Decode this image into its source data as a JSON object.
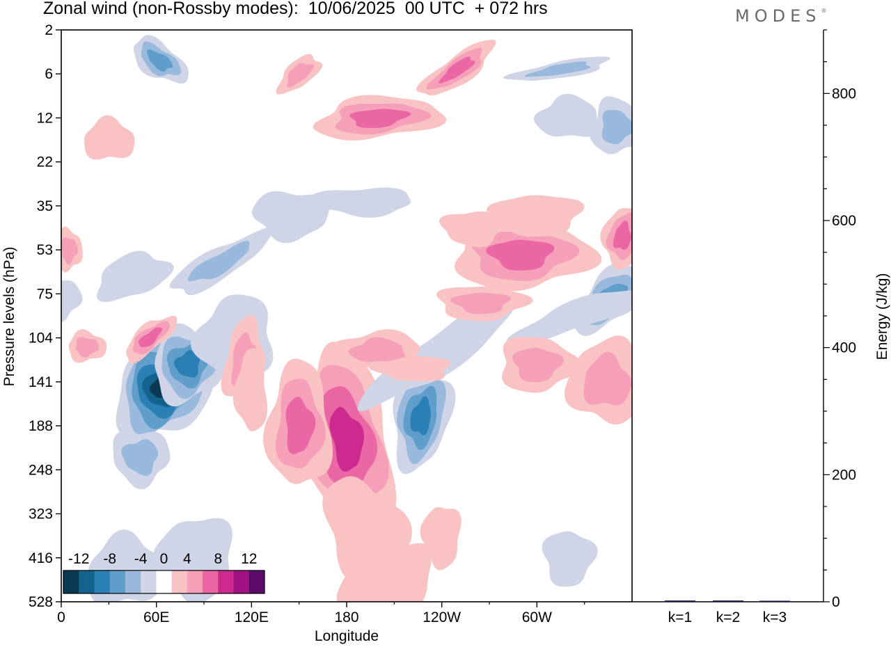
{
  "header": {
    "title": "Zonal wind (non-Rossby modes):  10/06/2025  00 UTC  + 072 hrs",
    "brand": "MODES",
    "brand_mark": "®"
  },
  "chart_data": [
    {
      "type": "heatmap",
      "title": "Zonal wind (non-Rossby modes):  10/06/2025  00 UTC  + 072 hrs",
      "xlabel": "Longitude",
      "ylabel": "Pressure levels (hPa)",
      "x_ticks": [
        "0",
        "60E",
        "120E",
        "180",
        "120W",
        "60W"
      ],
      "x_tick_degrees": [
        0,
        60,
        120,
        180,
        240,
        300
      ],
      "xlim": [
        0,
        360
      ],
      "y_ticks": [
        2,
        6,
        12,
        22,
        35,
        53,
        75,
        104,
        141,
        188,
        248,
        323,
        416,
        528
      ],
      "y_scale": "model-level (reversed, surface-bottom)",
      "colorbar": {
        "tick_labels": [
          "-12",
          "-8",
          "-4",
          "0",
          "4",
          "8",
          "12"
        ],
        "levels": [
          -14,
          -12,
          -10,
          -8,
          -6,
          -4,
          -2,
          2,
          4,
          6,
          8,
          10,
          12,
          14
        ],
        "colors": [
          "#0b3954",
          "#14638f",
          "#2a7fb5",
          "#5f9dcb",
          "#98b9db",
          "#cfd5e7",
          "#ffffff",
          "#f9c2c3",
          "#f59fb8",
          "#ea66a4",
          "#cc2a8e",
          "#a11181",
          "#5c0a6c"
        ]
      },
      "features": [
        {
          "lon": 65,
          "level": 141,
          "sign": "negative",
          "peak": -14
        },
        {
          "lon": 180,
          "level": 141,
          "sign": "positive",
          "peak": 10
        },
        {
          "lon": 150,
          "level": 141,
          "sign": "positive",
          "peak": 8
        },
        {
          "lon": 227,
          "level": 188,
          "sign": "negative",
          "peak": -10
        },
        {
          "lon": 345,
          "level": 75,
          "sign": "negative",
          "peak": -8
        },
        {
          "lon": 200,
          "level": 12,
          "sign": "positive",
          "peak": 10
        },
        {
          "lon": 290,
          "level": 53,
          "sign": "positive",
          "peak": 10
        },
        {
          "lon": 345,
          "level": 35,
          "sign": "positive",
          "peak": 10
        },
        {
          "lon": 55,
          "level": 104,
          "sign": "positive",
          "peak": 8
        },
        {
          "lon": 345,
          "level": 141,
          "sign": "positive",
          "peak": 8
        },
        {
          "lon": 60,
          "level": 6,
          "sign": "negative",
          "peak": -8
        },
        {
          "lon": 250,
          "level": 6,
          "sign": "positive",
          "peak": 8
        }
      ]
    },
    {
      "type": "bar",
      "categories": [
        "k=1",
        "k=2",
        "k=3"
      ],
      "values": [
        2,
        2,
        1
      ],
      "ylabel": "Energy (J/kg)",
      "ylim": [
        0,
        900
      ],
      "y_ticks": [
        0,
        200,
        400,
        600,
        800
      ]
    }
  ]
}
